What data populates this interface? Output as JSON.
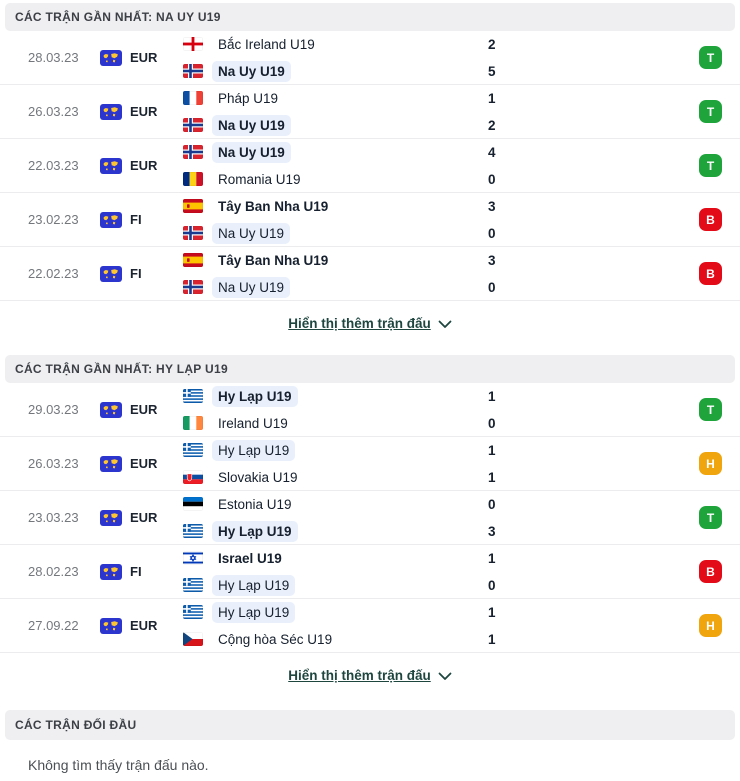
{
  "colors": {
    "win": "#1fa43c",
    "loss": "#e20b17",
    "draw": "#f0a40d",
    "highlight": "#e9effb",
    "link": "#1e463f",
    "header_bg": "#efeff1",
    "competition_icon_bg": "#2d35cf",
    "competition_icon_map": "#ffc62e"
  },
  "result_legend": {
    "T": "win",
    "B": "loss",
    "H": "draw"
  },
  "sections": [
    {
      "title": "CÁC TRẬN GẦN NHẤT: NA UY U19",
      "show_more_label": "Hiển thị thêm trận đấu",
      "matches": [
        {
          "date": "28.03.23",
          "competition": "EUR",
          "result": "T",
          "result_type": "win",
          "teams": [
            {
              "name": "Bắc Ireland U19",
              "flag": "northern-ireland",
              "score": "2",
              "bold": false,
              "highlight": false
            },
            {
              "name": "Na Uy U19",
              "flag": "norway",
              "score": "5",
              "bold": true,
              "highlight": true
            }
          ]
        },
        {
          "date": "26.03.23",
          "competition": "EUR",
          "result": "T",
          "result_type": "win",
          "teams": [
            {
              "name": "Pháp U19",
              "flag": "france",
              "score": "1",
              "bold": false,
              "highlight": false
            },
            {
              "name": "Na Uy U19",
              "flag": "norway",
              "score": "2",
              "bold": true,
              "highlight": true
            }
          ]
        },
        {
          "date": "22.03.23",
          "competition": "EUR",
          "result": "T",
          "result_type": "win",
          "teams": [
            {
              "name": "Na Uy U19",
              "flag": "norway",
              "score": "4",
              "bold": true,
              "highlight": true
            },
            {
              "name": "Romania U19",
              "flag": "romania",
              "score": "0",
              "bold": false,
              "highlight": false
            }
          ]
        },
        {
          "date": "23.02.23",
          "competition": "FI",
          "result": "B",
          "result_type": "loss",
          "teams": [
            {
              "name": "Tây Ban Nha U19",
              "flag": "spain",
              "score": "3",
              "bold": true,
              "highlight": false
            },
            {
              "name": "Na Uy U19",
              "flag": "norway",
              "score": "0",
              "bold": false,
              "highlight": true
            }
          ]
        },
        {
          "date": "22.02.23",
          "competition": "FI",
          "result": "B",
          "result_type": "loss",
          "teams": [
            {
              "name": "Tây Ban Nha U19",
              "flag": "spain",
              "score": "3",
              "bold": true,
              "highlight": false
            },
            {
              "name": "Na Uy U19",
              "flag": "norway",
              "score": "0",
              "bold": false,
              "highlight": true
            }
          ]
        }
      ]
    },
    {
      "title": "CÁC TRẬN GẦN NHẤT: HY LẠP U19",
      "show_more_label": "Hiển thị thêm trận đấu",
      "matches": [
        {
          "date": "29.03.23",
          "competition": "EUR",
          "result": "T",
          "result_type": "win",
          "teams": [
            {
              "name": "Hy Lạp U19",
              "flag": "greece",
              "score": "1",
              "bold": true,
              "highlight": true
            },
            {
              "name": "Ireland U19",
              "flag": "ireland",
              "score": "0",
              "bold": false,
              "highlight": false
            }
          ]
        },
        {
          "date": "26.03.23",
          "competition": "EUR",
          "result": "H",
          "result_type": "draw",
          "teams": [
            {
              "name": "Hy Lạp U19",
              "flag": "greece",
              "score": "1",
              "bold": false,
              "highlight": true
            },
            {
              "name": "Slovakia U19",
              "flag": "slovakia",
              "score": "1",
              "bold": false,
              "highlight": false
            }
          ]
        },
        {
          "date": "23.03.23",
          "competition": "EUR",
          "result": "T",
          "result_type": "win",
          "teams": [
            {
              "name": "Estonia U19",
              "flag": "estonia",
              "score": "0",
              "bold": false,
              "highlight": false
            },
            {
              "name": "Hy Lạp U19",
              "flag": "greece",
              "score": "3",
              "bold": true,
              "highlight": true
            }
          ]
        },
        {
          "date": "28.02.23",
          "competition": "FI",
          "result": "B",
          "result_type": "loss",
          "teams": [
            {
              "name": "Israel U19",
              "flag": "israel",
              "score": "1",
              "bold": true,
              "highlight": false
            },
            {
              "name": "Hy Lạp U19",
              "flag": "greece",
              "score": "0",
              "bold": false,
              "highlight": true
            }
          ]
        },
        {
          "date": "27.09.22",
          "competition": "EUR",
          "result": "H",
          "result_type": "draw",
          "teams": [
            {
              "name": "Hy Lạp U19",
              "flag": "greece",
              "score": "1",
              "bold": false,
              "highlight": true
            },
            {
              "name": "Cộng hòa Séc U19",
              "flag": "czech",
              "score": "1",
              "bold": false,
              "highlight": false
            }
          ]
        }
      ]
    },
    {
      "title": "CÁC TRẬN ĐỐI ĐẦU",
      "empty_message": "Không tìm thấy trận đấu nào."
    }
  ]
}
